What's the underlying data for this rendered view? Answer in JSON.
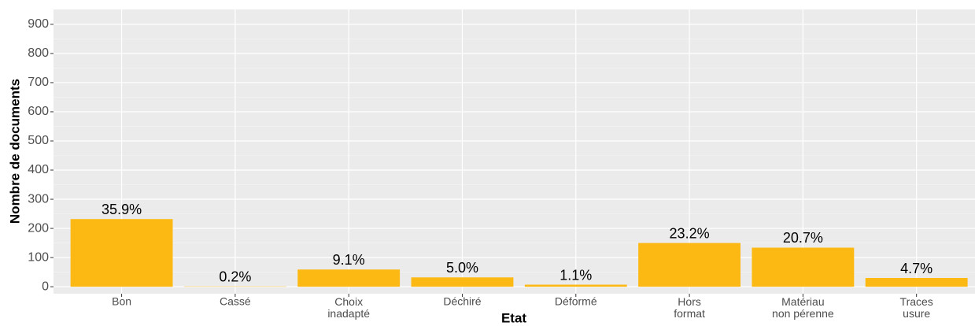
{
  "chart_data": {
    "type": "bar",
    "x_label": "Etat",
    "y_label": "Nombre de documents",
    "categories": [
      "Bon",
      "Cassé",
      "Choix\ninadapté",
      "Déchiré",
      "Déformé",
      "Hors\nformat",
      "Matériau\nnon pérenne",
      "Traces\nusure"
    ],
    "values": [
      232,
      1,
      59,
      32,
      7,
      150,
      134,
      30
    ],
    "bar_labels": [
      "35.9%",
      "0.2%",
      "9.1%",
      "5.0%",
      "1.1%",
      "23.2%",
      "20.7%",
      "4.7%"
    ],
    "color": "#FDB913",
    "ylim": [
      -24,
      951
    ],
    "yticks": [
      0,
      100,
      200,
      300,
      400,
      500,
      600,
      700,
      800,
      900
    ],
    "y_minor_ticks": [
      50,
      150,
      250,
      350,
      450,
      550,
      650,
      750,
      850
    ],
    "grid": true
  }
}
